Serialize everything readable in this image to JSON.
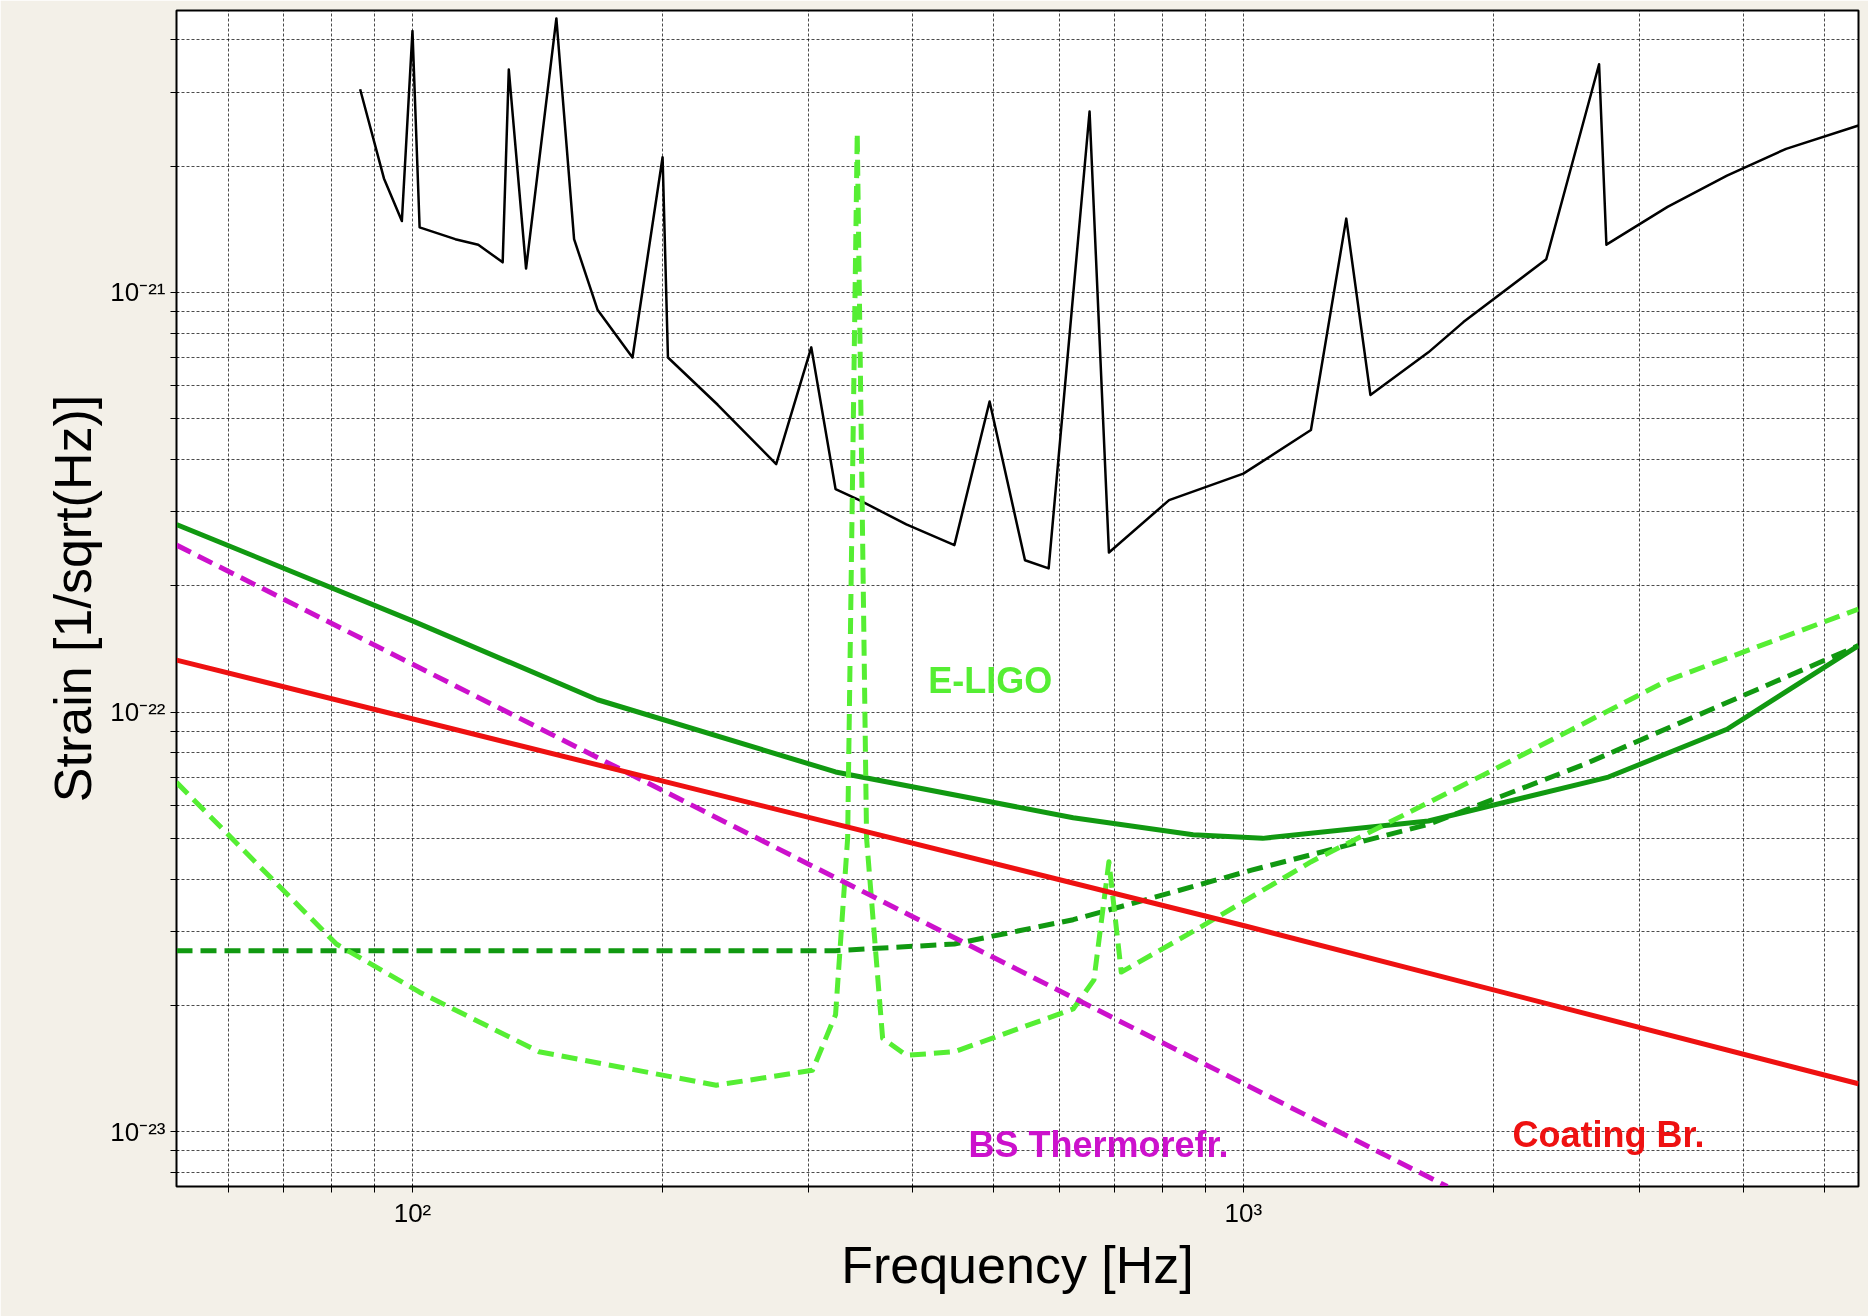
{
  "chart_data": {
    "type": "line",
    "xlabel": "Frequency [Hz]",
    "ylabel": "Strain [1/sqrt(Hz)]",
    "log": "xy",
    "grid": true,
    "legend": false,
    "xlim": [
      52,
      5500
    ],
    "ylim": [
      7.4e-24,
      4.7e-21
    ],
    "xticks": [
      {
        "value": 60,
        "label": null
      },
      {
        "value": 70,
        "label": null
      },
      {
        "value": 80,
        "label": null
      },
      {
        "value": 90,
        "label": null
      },
      {
        "value": 100,
        "label": "10²"
      },
      {
        "value": 200,
        "label": null
      },
      {
        "value": 300,
        "label": null
      },
      {
        "value": 400,
        "label": null
      },
      {
        "value": 500,
        "label": null
      },
      {
        "value": 600,
        "label": null
      },
      {
        "value": 700,
        "label": null
      },
      {
        "value": 800,
        "label": null
      },
      {
        "value": 900,
        "label": null
      },
      {
        "value": 1000,
        "label": "10³"
      },
      {
        "value": 2000,
        "label": null
      },
      {
        "value": 3000,
        "label": null
      },
      {
        "value": 4000,
        "label": null
      },
      {
        "value": 5000,
        "label": null
      }
    ],
    "yticks": [
      {
        "value": 8e-24,
        "label": null
      },
      {
        "value": 9e-24,
        "label": null
      },
      {
        "value": 1e-23,
        "label": "10⁻²³"
      },
      {
        "value": 2e-23,
        "label": null
      },
      {
        "value": 3e-23,
        "label": null
      },
      {
        "value": 4e-23,
        "label": null
      },
      {
        "value": 5e-23,
        "label": null
      },
      {
        "value": 6e-23,
        "label": null
      },
      {
        "value": 7e-23,
        "label": null
      },
      {
        "value": 8e-23,
        "label": null
      },
      {
        "value": 9e-23,
        "label": null
      },
      {
        "value": 1e-22,
        "label": "10⁻²²"
      },
      {
        "value": 2e-22,
        "label": null
      },
      {
        "value": 3e-22,
        "label": null
      },
      {
        "value": 4e-22,
        "label": null
      },
      {
        "value": 5e-22,
        "label": null
      },
      {
        "value": 6e-22,
        "label": null
      },
      {
        "value": 7e-22,
        "label": null
      },
      {
        "value": 8e-22,
        "label": null
      },
      {
        "value": 9e-22,
        "label": null
      },
      {
        "value": 1e-21,
        "label": "10⁻²¹"
      },
      {
        "value": 2e-21,
        "label": null
      },
      {
        "value": 3e-21,
        "label": null
      },
      {
        "value": 4e-21,
        "label": null
      }
    ],
    "series": [
      {
        "color": "#000000",
        "line_style": "solid",
        "x": [
          86.5,
          92.4,
          97.1,
          100,
          102,
          112.6,
          120,
          128.4,
          130.6,
          137,
          149,
          156.5,
          167,
          184,
          200,
          203,
          233,
          274,
          302,
          323,
          345,
          393,
          449,
          495,
          546,
          583,
          653,
          689,
          814,
          1000,
          1206,
          1330,
          1422,
          1670,
          1840,
          2315,
          2680,
          2735,
          3240,
          3820,
          4500,
          5500
        ],
        "values": [
          3.05e-21,
          1.87e-21,
          1.48e-21,
          4.2e-21,
          1.43e-21,
          1.34e-21,
          1.3e-21,
          1.18e-21,
          3.4e-21,
          1.14e-21,
          4.5e-21,
          1.34e-21,
          9.1e-22,
          7e-22,
          2.1e-21,
          7e-22,
          5.4e-22,
          3.9e-22,
          7.4e-22,
          3.4e-22,
          3.2e-22,
          2.8e-22,
          2.5e-22,
          5.5e-22,
          2.3e-22,
          2.2e-22,
          2.7e-21,
          2.4e-22,
          3.2e-22,
          3.7e-22,
          4.7e-22,
          1.5e-21,
          5.7e-22,
          7.2e-22,
          8.5e-22,
          1.2e-21,
          3.5e-21,
          1.3e-21,
          1.6e-21,
          1.9e-21,
          2.2e-21,
          2.5e-21
        ]
      },
      {
        "color": "#119911",
        "line_style": "solid",
        "x": [
          52,
          100,
          167,
          323,
          624,
          870,
          1055,
          1670,
          2750,
          3820,
          5500
        ],
        "values": [
          2.8e-22,
          1.65e-22,
          1.07e-22,
          7.2e-23,
          5.6e-23,
          5.1e-23,
          5e-23,
          5.5e-23,
          7e-23,
          9.1e-23,
          1.44e-22
        ]
      },
      {
        "color": "#119911",
        "line_style": "dashed",
        "x": [
          52,
          323,
          449,
          624,
          736,
          1023,
          1670,
          2570,
          5500
        ],
        "values": [
          2.7e-23,
          2.7e-23,
          2.8e-23,
          3.2e-23,
          3.5e-23,
          4.2e-23,
          5.4e-23,
          7.5e-23,
          1.44e-22
        ]
      },
      {
        "name": "E-LIGO",
        "color": "#55ee33",
        "line_style": "dashed",
        "x": [
          52,
          81,
          102,
          142,
          232,
          303,
          323,
          334,
          343,
          352,
          368,
          393,
          449,
          624,
          661,
          689,
          713,
          870,
          1207,
          1977,
          3240,
          5500
        ],
        "values": [
          6.8e-23,
          2.8e-23,
          2.15e-23,
          1.55e-23,
          1.29e-23,
          1.4e-23,
          1.9e-23,
          5e-23,
          2.4e-21,
          5e-23,
          1.67e-23,
          1.52e-23,
          1.55e-23,
          1.96e-23,
          2.3e-23,
          4.4e-23,
          2.4e-23,
          3e-23,
          4.4e-23,
          7.2e-23,
          1.19e-22,
          1.76e-22
        ]
      },
      {
        "name": "BS Thermorefr.",
        "color": "#cc11cc",
        "line_style": "dashed",
        "x": [
          52,
          1760
        ],
        "values": [
          2.5e-22,
          7.4e-24
        ]
      },
      {
        "name": "Coating Br.",
        "color": "#ee1111",
        "line_style": "solid",
        "x": [
          52,
          1000,
          5500
        ],
        "values": [
          1.33e-22,
          3.1e-23,
          1.3e-23
        ]
      }
    ]
  }
}
